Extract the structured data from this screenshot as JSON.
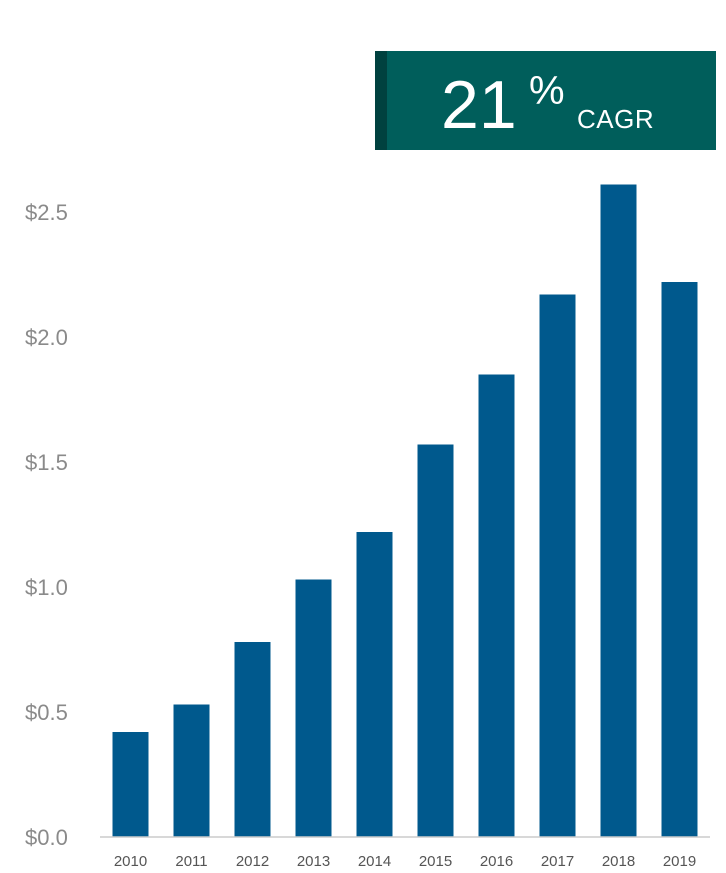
{
  "badge": {
    "value": "21",
    "unit": "%",
    "label": "CAGR",
    "color": "#005e5b",
    "accent_color": "#00413f"
  },
  "chart_data": {
    "type": "bar",
    "categories": [
      "2010",
      "2011",
      "2012",
      "2013",
      "2014",
      "2015",
      "2016",
      "2017",
      "2018",
      "2019"
    ],
    "values": [
      0.42,
      0.53,
      0.78,
      1.03,
      1.22,
      1.57,
      1.85,
      2.17,
      2.61,
      2.22
    ],
    "yticks": [
      0.0,
      0.5,
      1.0,
      1.5,
      2.0,
      2.5
    ],
    "ytick_labels": [
      "$0.0",
      "$0.5",
      "$1.0",
      "$1.5",
      "$2.0",
      "$2.5"
    ],
    "ylim": [
      0,
      2.6
    ],
    "bar_color": "#00598d",
    "grid": false,
    "legend": "none"
  }
}
